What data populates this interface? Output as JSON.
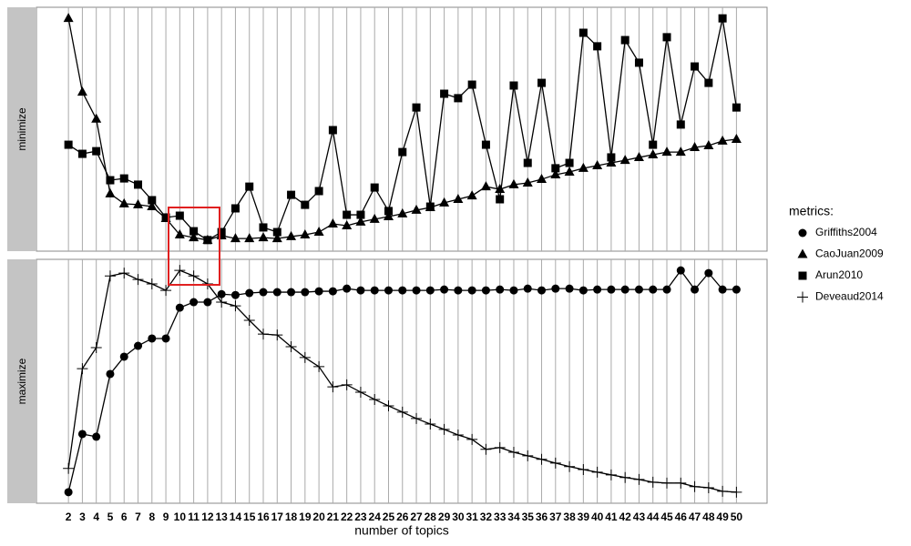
{
  "chart_data": [
    {
      "type": "line",
      "facet": "minimize",
      "legend_title": "metrics:",
      "x": [
        2,
        3,
        4,
        5,
        6,
        7,
        8,
        9,
        10,
        11,
        12,
        13,
        14,
        15,
        16,
        17,
        18,
        19,
        20,
        21,
        22,
        23,
        24,
        25,
        26,
        27,
        28,
        29,
        30,
        31,
        32,
        33,
        34,
        35,
        36,
        37,
        38,
        39,
        40,
        41,
        42,
        43,
        44,
        45,
        46,
        47,
        48,
        49,
        50
      ],
      "xlim": [
        -0.3,
        52.2
      ],
      "ylim": [
        -0.05,
        1.05
      ],
      "grid": true,
      "series": [
        {
          "name": "CaoJuan2009",
          "marker": "triangle",
          "color": "#000000",
          "values": [
            1.0,
            0.668,
            0.546,
            0.209,
            0.164,
            0.16,
            0.151,
            0.098,
            0.024,
            0.011,
            0,
            0.02,
            0.007,
            0.007,
            0.011,
            0.007,
            0.016,
            0.024,
            0.036,
            0.073,
            0.065,
            0.082,
            0.094,
            0.106,
            0.119,
            0.135,
            0.147,
            0.168,
            0.184,
            0.2,
            0.241,
            0.229,
            0.25,
            0.258,
            0.274,
            0.295,
            0.307,
            0.324,
            0.336,
            0.348,
            0.36,
            0.373,
            0.385,
            0.397,
            0.397,
            0.418,
            0.426,
            0.447,
            0.455
          ]
        },
        {
          "name": "Arun2010",
          "marker": "square",
          "color": "#000000",
          "values": [
            0.43,
            0.389,
            0.401,
            0.27,
            0.278,
            0.25,
            0.18,
            0.102,
            0.11,
            0.04,
            0,
            0.036,
            0.143,
            0.241,
            0.057,
            0.036,
            0.204,
            0.159,
            0.221,
            0.496,
            0.114,
            0.114,
            0.237,
            0.131,
            0.397,
            0.598,
            0.151,
            0.66,
            0.64,
            0.701,
            0.43,
            0.184,
            0.697,
            0.348,
            0.709,
            0.324,
            0.348,
            0.935,
            0.874,
            0.373,
            0.902,
            0.8,
            0.43,
            0.915,
            0.521,
            0.783,
            0.709,
            1.0,
            0.598
          ]
        }
      ]
    },
    {
      "type": "line",
      "facet": "maximize",
      "x_label": "number of topics",
      "x": [
        2,
        3,
        4,
        5,
        6,
        7,
        8,
        9,
        10,
        11,
        12,
        13,
        14,
        15,
        16,
        17,
        18,
        19,
        20,
        21,
        22,
        23,
        24,
        25,
        26,
        27,
        28,
        29,
        30,
        31,
        32,
        33,
        34,
        35,
        36,
        37,
        38,
        39,
        40,
        41,
        42,
        43,
        44,
        45,
        46,
        47,
        48,
        49,
        50
      ],
      "xlim": [
        -0.3,
        52.2
      ],
      "ylim": [
        -0.05,
        1.05
      ],
      "grid": true,
      "series": [
        {
          "name": "Griffiths2004",
          "marker": "circle",
          "color": "#000000",
          "values": [
            0,
            0.262,
            0.25,
            0.533,
            0.611,
            0.66,
            0.693,
            0.693,
            0.832,
            0.857,
            0.857,
            0.893,
            0.889,
            0.898,
            0.902,
            0.902,
            0.902,
            0.902,
            0.906,
            0.906,
            0.918,
            0.91,
            0.91,
            0.91,
            0.91,
            0.91,
            0.91,
            0.914,
            0.91,
            0.91,
            0.91,
            0.914,
            0.91,
            0.918,
            0.91,
            0.918,
            0.918,
            0.91,
            0.914,
            0.914,
            0.914,
            0.914,
            0.914,
            0.914,
            1.0,
            0.914,
            0.988,
            0.914,
            0.914
          ]
        },
        {
          "name": "Deveaud2014",
          "marker": "plus",
          "color": "#000000",
          "values": [
            0.107,
            0.557,
            0.652,
            0.975,
            0.988,
            0.959,
            0.939,
            0.91,
            1.0,
            0.975,
            0.939,
            0.857,
            0.84,
            0.775,
            0.713,
            0.709,
            0.656,
            0.607,
            0.566,
            0.475,
            0.484,
            0.451,
            0.418,
            0.389,
            0.361,
            0.332,
            0.307,
            0.283,
            0.258,
            0.238,
            0.193,
            0.201,
            0.18,
            0.164,
            0.148,
            0.131,
            0.115,
            0.102,
            0.09,
            0.078,
            0.066,
            0.057,
            0.045,
            0.041,
            0.041,
            0.025,
            0.02,
            0.004,
            0
          ]
        }
      ]
    }
  ]
}
